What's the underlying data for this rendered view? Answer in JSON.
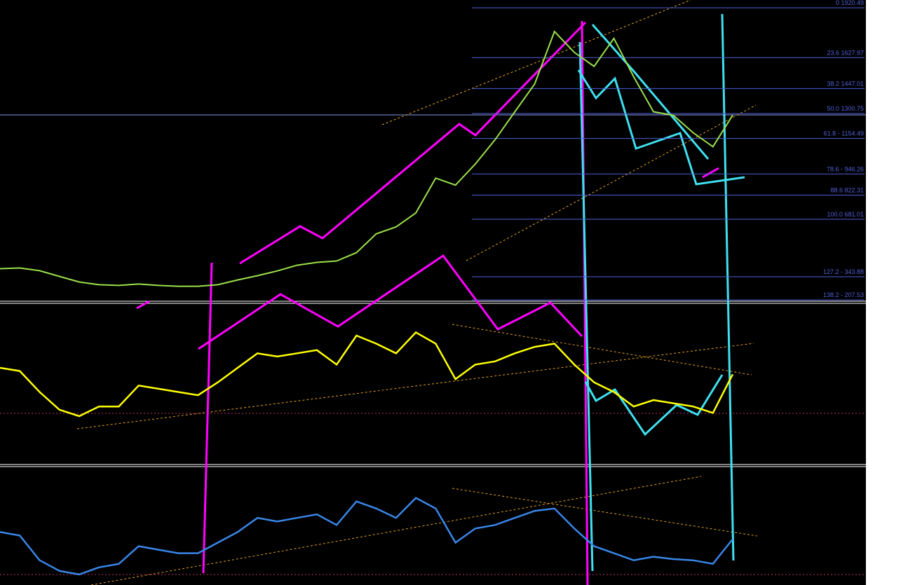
{
  "chart_data": {
    "type": "line",
    "ylim": [
      200,
      1966
    ],
    "fib_levels": [
      {
        "value": 1920.49,
        "label": "0 1920.49"
      },
      {
        "value": 1627.97,
        "label": "23.6 1627.97"
      },
      {
        "value": 1447.01,
        "label": "38.2 1447.01"
      },
      {
        "value": 1300.75,
        "label": "50.0 1300.75"
      },
      {
        "value": 1154.49,
        "label": "61.8 - 1154.49"
      },
      {
        "value": 946.26,
        "label": "78.6 - 946.26"
      },
      {
        "value": 822.31,
        "label": "88.6 822.31"
      },
      {
        "value": 681.01,
        "label": "100.0 681.01"
      },
      {
        "value": 343.88,
        "label": "127.2 - 343.88"
      },
      {
        "value": 207.53,
        "label": "138.2 - 207.53"
      }
    ],
    "fib_color": "#4f5fd6",
    "series": [
      {
        "color": "#9be04a",
        "values": [
          391,
          395,
          379,
          346,
          313,
          297,
          293,
          301,
          293,
          288,
          288,
          297,
          325,
          350,
          378,
          411,
          428,
          436,
          485,
          595,
          636,
          718,
          922,
          881,
          1004,
          1147,
          1311,
          1474,
          1781,
          1659,
          1577,
          1741,
          1516,
          1311,
          1290,
          1188,
          1106,
          1291
        ]
      }
    ],
    "indicators": [
      {
        "color": "#ffff00",
        "ylim": [
          0,
          100
        ],
        "values": [
          60,
          58,
          45,
          34,
          30,
          36,
          36,
          49,
          47,
          45,
          43,
          51,
          60,
          69,
          67,
          69,
          71,
          62,
          80,
          75,
          69,
          82,
          75,
          53,
          62,
          64,
          69,
          73,
          75,
          62,
          51,
          45,
          36,
          40,
          38,
          36,
          32,
          56
        ]
      },
      {
        "color": "#3a86e8",
        "ylim": [
          0,
          100
        ],
        "values": [
          45,
          42,
          21,
          12,
          9,
          15,
          18,
          33,
          30,
          27,
          27,
          36,
          45,
          57,
          54,
          57,
          60,
          51,
          71,
          65,
          57,
          74,
          65,
          36,
          48,
          51,
          57,
          63,
          65,
          48,
          33,
          27,
          21,
          24,
          22,
          21,
          18,
          39
        ]
      }
    ]
  }
}
